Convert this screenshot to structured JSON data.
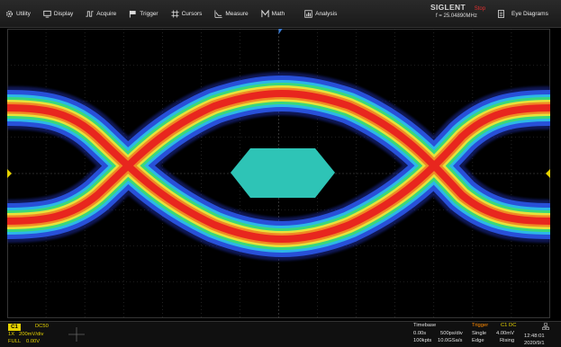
{
  "menu": {
    "items": [
      {
        "label": "Utility",
        "icon": "gear-icon"
      },
      {
        "label": "Display",
        "icon": "monitor-icon"
      },
      {
        "label": "Acquire",
        "icon": "acquire-wave-icon"
      },
      {
        "label": "Trigger",
        "icon": "flag-icon"
      },
      {
        "label": "Cursors",
        "icon": "cursors-icon"
      },
      {
        "label": "Measure",
        "icon": "measure-icon"
      },
      {
        "label": "Math",
        "icon": "math-icon"
      },
      {
        "label": "Analysis",
        "icon": "analysis-icon"
      }
    ]
  },
  "brand": {
    "name": "SIGLENT",
    "status": "Stop",
    "frequency": "f = 25.04890MHz"
  },
  "eye_button": {
    "label": "Eye Diagrams",
    "icon": "document-icon"
  },
  "colors": {
    "channel": "#e6d200",
    "trigger": "#ff8a00",
    "mask": "#2ec4b6",
    "stop": "#e53030",
    "marker": "#3a7bd5"
  },
  "channel": {
    "name": "C1",
    "coupling": "DC50",
    "probe": "1X",
    "scale": "200mV/div",
    "bandwidth": "FULL",
    "offset": "0.00V"
  },
  "timebase": {
    "title": "Timebase",
    "delay": "0.00s",
    "scale": "500ps/div",
    "memory": "100kpts",
    "sample_rate": "10.0GSa/s"
  },
  "trigger": {
    "title": "Trigger",
    "source": "C1 DC",
    "mode": "Single",
    "level": "4.00mV",
    "type": "Edge",
    "slope": "Rising"
  },
  "clock": {
    "time": "12:48:01",
    "date": "2020/9/1",
    "icon": "network-icon"
  }
}
